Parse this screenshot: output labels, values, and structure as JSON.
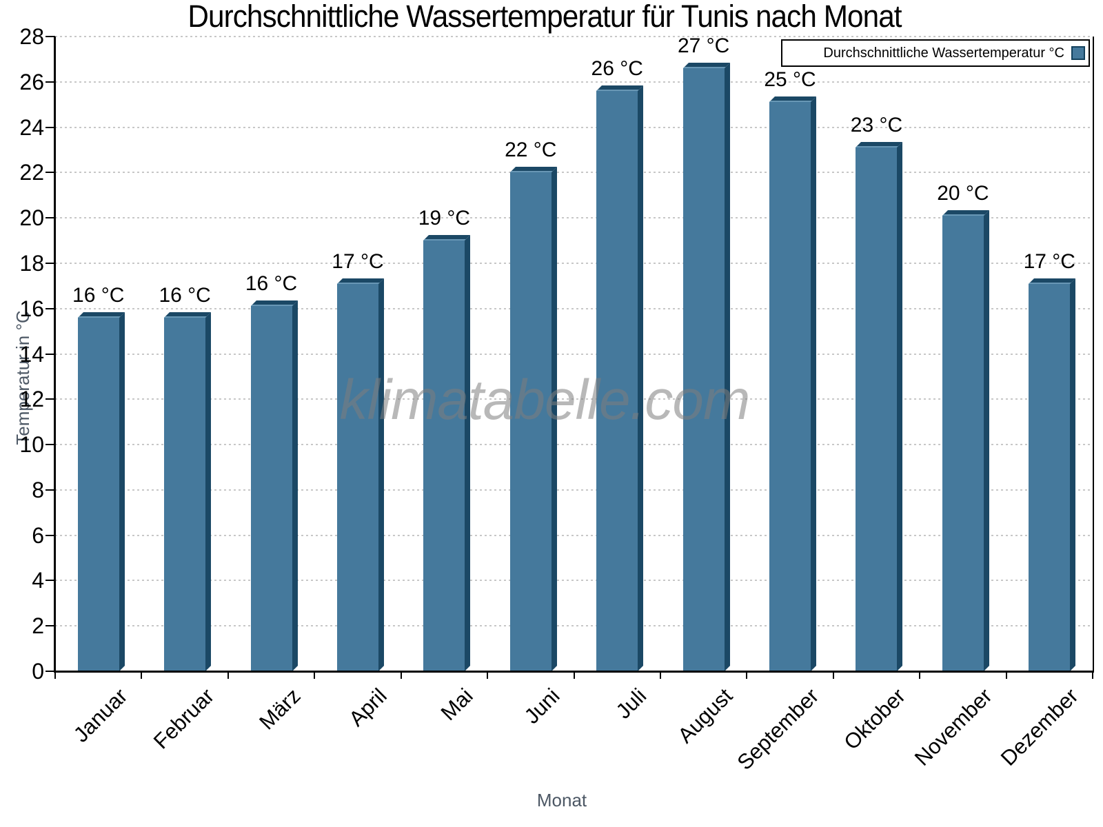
{
  "chart_data": {
    "type": "bar",
    "title": "Durchschnittliche Wassertemperatur für Tunis nach Monat",
    "xlabel": "Monat",
    "ylabel": "Temperatur in °C",
    "watermark": "klimatabelle.com",
    "categories": [
      "Januar",
      "Februar",
      "März",
      "April",
      "Mai",
      "Juni",
      "Juli",
      "August",
      "September",
      "Oktober",
      "November",
      "Dezember"
    ],
    "series": [
      {
        "name": "Durchschnittliche Wassertemperatur °C",
        "values": [
          15.6,
          15.6,
          16.1,
          17.1,
          19.0,
          22.0,
          25.6,
          26.6,
          25.1,
          23.1,
          20.1,
          17.1
        ],
        "value_labels": [
          "16 °C",
          "16 °C",
          "16 °C",
          "17 °C",
          "19 °C",
          "22 °C",
          "26 °C",
          "27 °C",
          "25 °C",
          "23 °C",
          "20 °C",
          "17 °C"
        ]
      }
    ],
    "ylim": [
      0,
      28
    ],
    "ytick_step": 2,
    "yticks": [
      0,
      2,
      4,
      6,
      8,
      10,
      12,
      14,
      16,
      18,
      20,
      22,
      24,
      26,
      28
    ],
    "grid": "horizontal-dotted",
    "legend_position": "top-right",
    "colors": {
      "bar_front": "#45799C",
      "bar_side": "#1B4865",
      "bar_top": "#1B4865",
      "bar_edge_highlight": "#6897B5",
      "grid": "#c7c7c7",
      "axis": "#000000",
      "axis_title": "#4d5865",
      "watermark_gray": "#7d7d7d"
    }
  }
}
